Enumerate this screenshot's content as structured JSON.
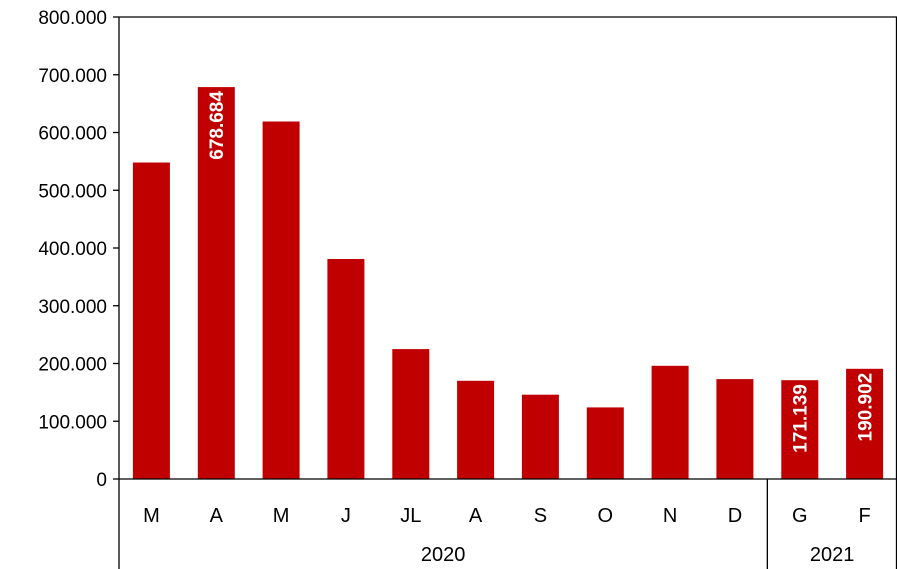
{
  "chart_data": {
    "type": "bar",
    "categories": [
      "M",
      "A",
      "M",
      "J",
      "JL",
      "A",
      "S",
      "O",
      "N",
      "D",
      "G",
      "F"
    ],
    "values": [
      548000,
      678684,
      619000,
      381000,
      225000,
      170000,
      146000,
      124000,
      196000,
      173000,
      171139,
      190902
    ],
    "data_labels": [
      "",
      "678.684",
      "",
      "",
      "",
      "",
      "",
      "",
      "",
      "",
      "171.139",
      "190.902"
    ],
    "groups": [
      {
        "label": "2020",
        "start": 0,
        "end": 9
      },
      {
        "label": "2021",
        "start": 10,
        "end": 11
      }
    ],
    "yticks": [
      0,
      100000,
      200000,
      300000,
      400000,
      500000,
      600000,
      700000,
      800000
    ],
    "ytick_labels": [
      "0",
      "100.000",
      "200.000",
      "300.000",
      "400.000",
      "500.000",
      "600.000",
      "700.000",
      "800.000"
    ],
    "ylim": [
      0,
      800000
    ],
    "grid": false,
    "bar_color": "#C00000",
    "title": "",
    "xlabel": "",
    "ylabel": ""
  }
}
